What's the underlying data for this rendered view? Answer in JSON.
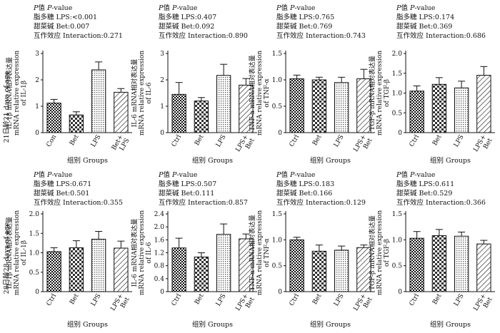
{
  "labels": {
    "pvalue_prefix": "P值 ",
    "pvalue_italic": "P",
    "pvalue_suffix": "-value",
    "lps_prefix": "脂多糖",
    "bet_prefix": "甜菜碱",
    "int_prefix": "互作效应",
    "xlabel": "组别 Groups"
  },
  "row_labels": [
    "21日龄21 days of age",
    "28日龄28 days of age"
  ],
  "chart_data": [
    {
      "type": "bar",
      "title": "",
      "xlabel": "组别 Groups",
      "ylabel": [
        "IL-1β mRNA相对表达量",
        "mRNA relative expression",
        "of IL-1β"
      ],
      "categories": [
        "Con",
        "Bet",
        "LPS",
        "Bet+ LPS"
      ],
      "series": [
        {
          "values": [
            1.12,
            0.67,
            2.38,
            1.53
          ],
          "errors": [
            0.14,
            0.12,
            0.3,
            0.14
          ]
        }
      ],
      "ylim": [
        0,
        3
      ],
      "yticks": [
        "0",
        "1",
        "2",
        "3"
      ],
      "stats": [
        "LPS:<0.001",
        "Bet:0.007",
        "Interaction:0.271"
      ]
    },
    {
      "type": "bar",
      "title": "",
      "xlabel": "组别 Groups",
      "ylabel": [
        "IL-6 mRNA相对表达量",
        "mRNA relative expression",
        "of IL-6"
      ],
      "categories": [
        "Ctrl",
        "Bet",
        "LPS",
        "LPS+ Bet"
      ],
      "series": [
        {
          "values": [
            1.45,
            1.2,
            2.17,
            1.8
          ],
          "errors": [
            0.45,
            0.13,
            0.42,
            0.25
          ]
        }
      ],
      "ylim": [
        0,
        3
      ],
      "yticks": [
        "0",
        "1",
        "2",
        "3"
      ],
      "stats": [
        "LPS:0.407",
        "Bet:0.092",
        "Interaction:0.890"
      ]
    },
    {
      "type": "bar",
      "title": "",
      "xlabel": "组别 Groups",
      "ylabel": [
        "TNF-α mRNA相对表达量",
        "mRNA relative expression",
        "of TNF-α"
      ],
      "categories": [
        "Ctrl",
        "Bet",
        "LPS",
        "LPS+ Bet"
      ],
      "series": [
        {
          "values": [
            1.02,
            1.0,
            0.95,
            1.02
          ],
          "errors": [
            0.07,
            0.05,
            0.1,
            0.18
          ]
        }
      ],
      "ylim": [
        0,
        1.5
      ],
      "yticks": [
        "0",
        "0.5",
        "1.0",
        "1.5"
      ],
      "stats": [
        "LPS:0.765",
        "Bet:0.769",
        "Interaction:0.743"
      ]
    },
    {
      "type": "bar",
      "title": "",
      "xlabel": "组别 Groups",
      "ylabel": [
        "TGF-β mRNA相对表达量",
        "mRNA relative expression",
        "of TGF-β"
      ],
      "categories": [
        "Ctrl",
        "Bet",
        "LPS",
        "LPS+ Bet"
      ],
      "series": [
        {
          "values": [
            1.05,
            1.22,
            1.13,
            1.45
          ],
          "errors": [
            0.13,
            0.17,
            0.17,
            0.22
          ]
        }
      ],
      "ylim": [
        0,
        2.0
      ],
      "yticks": [
        "0",
        "0.5",
        "1.0",
        "1.5",
        "2.0"
      ],
      "stats": [
        "LPS:0.174",
        "Bet:0.369",
        "Interaction:0.686"
      ]
    },
    {
      "type": "bar",
      "title": "",
      "xlabel": "组别 Groups",
      "ylabel": [
        "IL-1β mRNA相对表达量",
        "mRNA relative expression",
        "of IL-1β"
      ],
      "categories": [
        "Ctrl",
        "Bet",
        "LPS",
        "LPS+ Bet"
      ],
      "series": [
        {
          "values": [
            1.03,
            1.13,
            1.35,
            1.12
          ],
          "errors": [
            0.1,
            0.18,
            0.2,
            0.18
          ]
        }
      ],
      "ylim": [
        0,
        2.0
      ],
      "yticks": [
        "0",
        "0.5",
        "1.0",
        "1.5",
        "2.0"
      ],
      "stats": [
        "LPS:0.671",
        "Bet:0.501",
        "Interaction:0.355"
      ]
    },
    {
      "type": "bar",
      "title": "",
      "xlabel": "组别 Groups",
      "ylabel": [
        "IL-6 mRNA相对表达量",
        "mRNA relative expression",
        "of IL-6"
      ],
      "categories": [
        "Ctrl",
        "Bet",
        "LPS",
        "LPS+ Bet"
      ],
      "series": [
        {
          "values": [
            1.35,
            1.07,
            1.77,
            1.63
          ],
          "errors": [
            0.3,
            0.13,
            0.32,
            0.15
          ]
        }
      ],
      "ylim": [
        0,
        2.4
      ],
      "yticks": [
        "0",
        "0.4",
        "0.8",
        "1.2",
        "1.6",
        "2.0",
        "2.4"
      ],
      "stats": [
        "LPS:0.507",
        "Bet:0.111",
        "Interaction:0.857"
      ]
    },
    {
      "type": "bar",
      "title": "",
      "xlabel": "组别 Groups",
      "ylabel": [
        "TNF-α mRNA相对表达量",
        "mRNA relative expression",
        "of TNF-α"
      ],
      "categories": [
        "Ctrl",
        "Bet",
        "LPS",
        "LPS+ Bet"
      ],
      "series": [
        {
          "values": [
            1.0,
            0.78,
            0.8,
            0.85
          ],
          "errors": [
            0.05,
            0.12,
            0.08,
            0.05
          ]
        }
      ],
      "ylim": [
        0,
        1.5
      ],
      "yticks": [
        "0",
        "0.5",
        "1.0",
        "1.5"
      ],
      "stats": [
        "LPS:0.183",
        "Bet:0.166",
        "Interaction:0.129"
      ]
    },
    {
      "type": "bar",
      "title": "",
      "xlabel": "组别 Groups",
      "ylabel": [
        "TGF-β mRNA相对表达量",
        "mRNA relative expression",
        "of TGF-β"
      ],
      "categories": [
        "Ctrl",
        "Bet",
        "LPS",
        "LPS+ Bet"
      ],
      "series": [
        {
          "values": [
            1.03,
            1.08,
            1.07,
            0.92
          ],
          "errors": [
            0.13,
            0.12,
            0.08,
            0.07
          ]
        }
      ],
      "ylim": [
        0,
        1.5
      ],
      "yticks": [
        "0",
        "0.5",
        "1.0",
        "1.5"
      ],
      "stats": [
        "LPS:0.611",
        "Bet:0.529",
        "Interaction:0.366"
      ]
    }
  ]
}
